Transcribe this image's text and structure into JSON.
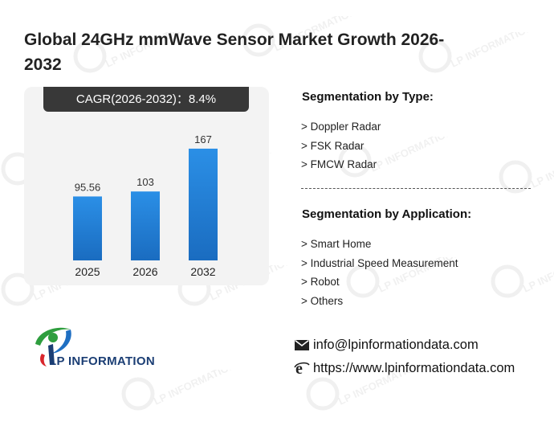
{
  "title": "Global 24GHz mmWave Sensor Market Growth 2026-2032",
  "cagr": "CAGR(2026-2032)：8.4%",
  "chart_data": {
    "type": "bar",
    "categories": [
      "2025",
      "2026",
      "2032"
    ],
    "values": [
      95.56,
      103,
      167
    ],
    "value_labels": [
      "95.56",
      "103",
      "167"
    ],
    "bar_color": "#1f7fd4",
    "ylim": [
      0,
      190
    ]
  },
  "segmentation_type": {
    "heading": "Segmentation by Type:",
    "items": [
      "> Doppler Radar",
      "> FSK Radar",
      "> FMCW Radar"
    ]
  },
  "segmentation_application": {
    "heading": "Segmentation by Application:",
    "items": [
      "> Smart Home",
      "> Industrial Speed Measurement",
      "> Robot",
      "> Others"
    ]
  },
  "logo": {
    "text": "LP INFORMATION",
    "icon": "lp-information-logo-icon"
  },
  "contact": {
    "email": "info@lpinformationdata.com",
    "website": "https://www.lpinformationdata.com",
    "email_icon": "envelope-icon",
    "web_icon": "browser-e-icon"
  },
  "watermark": "LP INFORMATION"
}
